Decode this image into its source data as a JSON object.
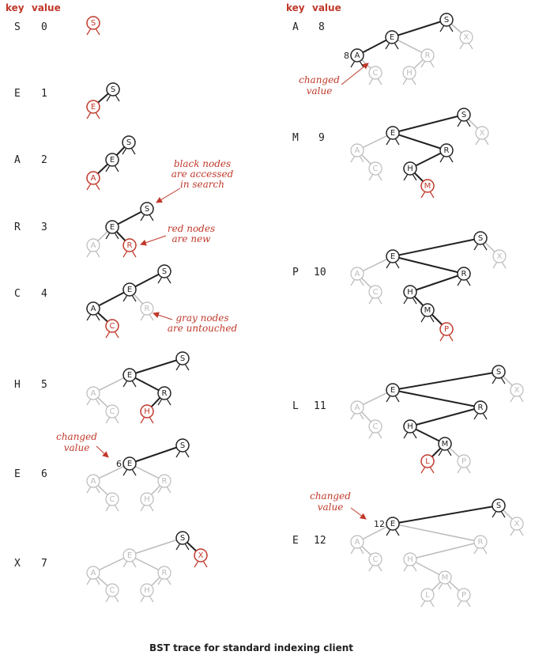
{
  "headers": {
    "key": "key",
    "value": "value"
  },
  "caption": "BST trace for standard indexing client",
  "colors": {
    "black": "#222222",
    "red": "#c0392b",
    "gray": "#bbbbbb"
  },
  "steps": [
    {
      "key": "S",
      "value": "0"
    },
    {
      "key": "E",
      "value": "1"
    },
    {
      "key": "A",
      "value": "2"
    },
    {
      "key": "R",
      "value": "3"
    },
    {
      "key": "C",
      "value": "4"
    },
    {
      "key": "H",
      "value": "5"
    },
    {
      "key": "E",
      "value": "6",
      "node_value": "6"
    },
    {
      "key": "X",
      "value": "7"
    },
    {
      "key": "A",
      "value": "8",
      "node_value": "8"
    },
    {
      "key": "M",
      "value": "9"
    },
    {
      "key": "P",
      "value": "10"
    },
    {
      "key": "L",
      "value": "11"
    },
    {
      "key": "E",
      "value": "12",
      "node_value": "12"
    }
  ],
  "annotations": {
    "black": [
      "black nodes",
      "are accessed",
      "in search"
    ],
    "red": [
      "red nodes",
      "are new"
    ],
    "gray": [
      "gray nodes",
      "are untouched"
    ],
    "changed": [
      "changed",
      "value"
    ]
  }
}
